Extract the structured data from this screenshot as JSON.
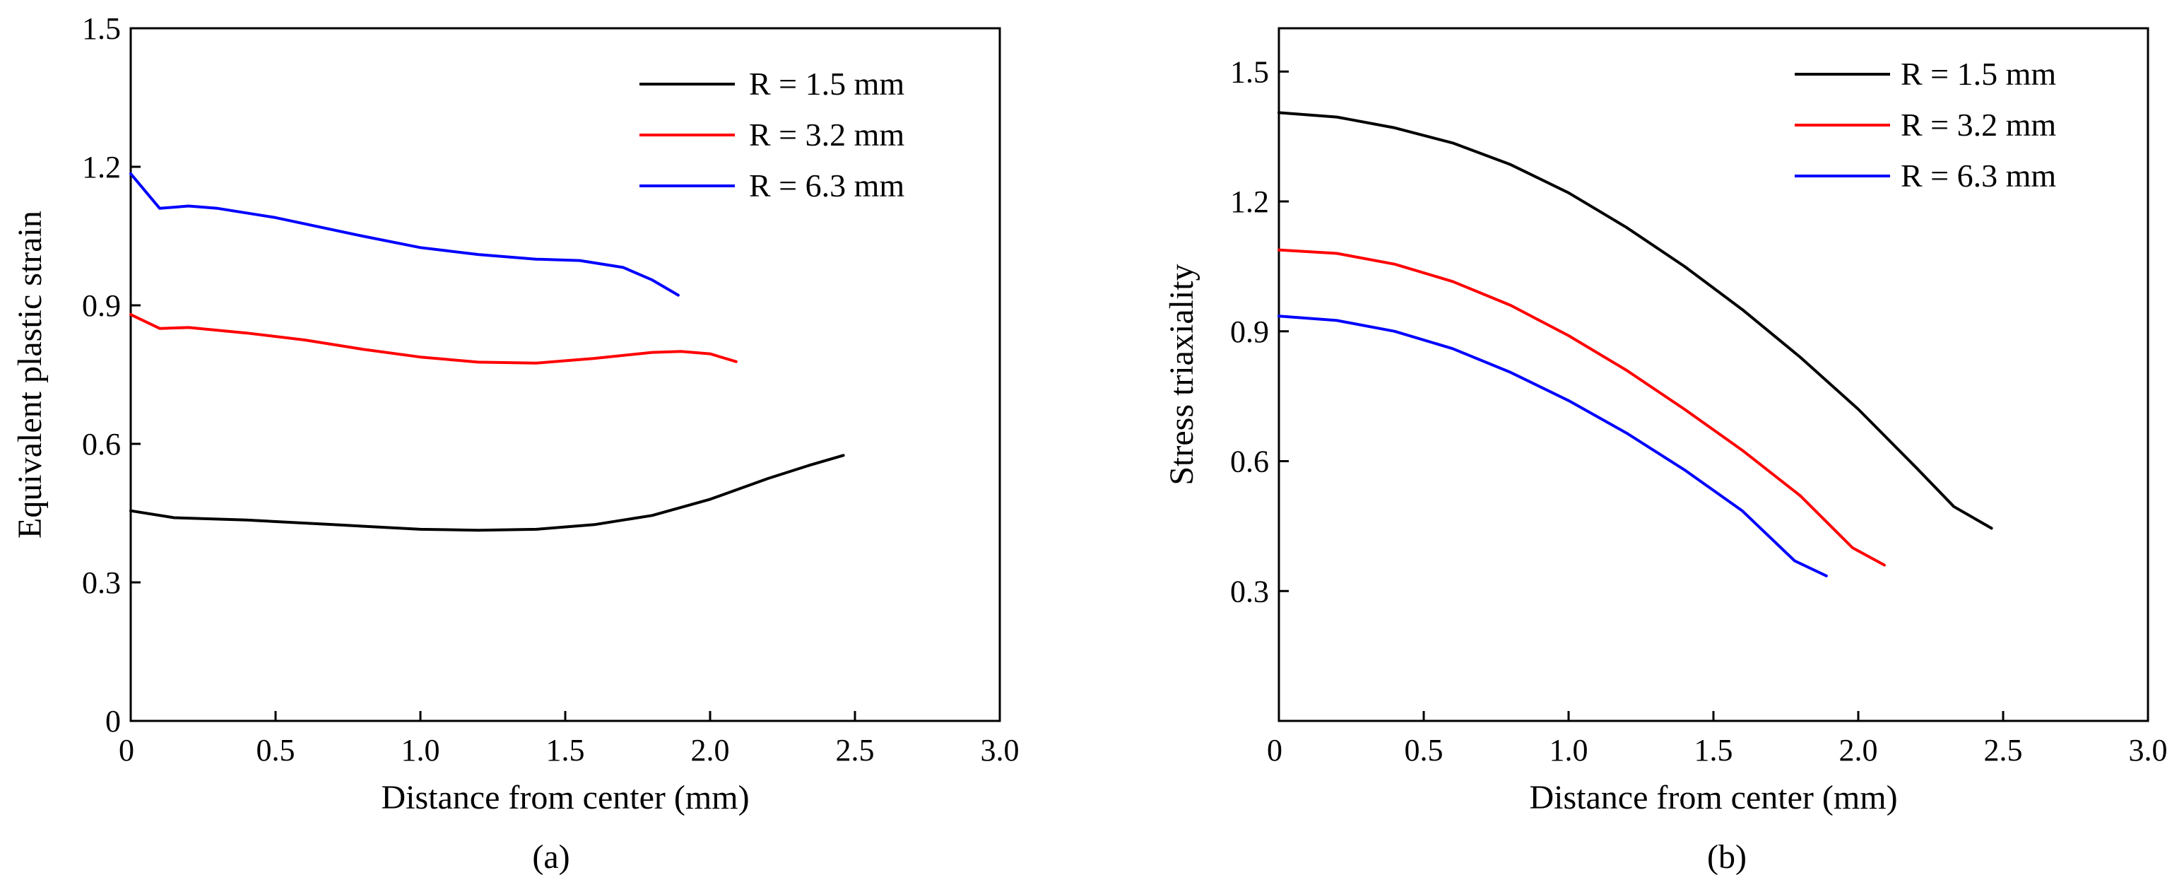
{
  "figure": {
    "panel_labels": [
      "(a)",
      "(b)"
    ]
  },
  "colors": {
    "R_1_5": "#000000",
    "R_3_2": "#ff0000",
    "R_6_3": "#0000ff",
    "axis": "#000000"
  },
  "chart_data": [
    {
      "type": "line",
      "panel": "(a)",
      "title": "",
      "xlabel": "Distance from center (mm)",
      "ylabel": "Equivalent plastic strain",
      "xlim": [
        0,
        3.0
      ],
      "ylim": [
        0,
        1.5
      ],
      "xticks": [
        0,
        0.5,
        1.0,
        1.5,
        2.0,
        2.5,
        3.0
      ],
      "xtick_labels": [
        "0",
        "0.5",
        "1.0",
        "1.5",
        "2.0",
        "2.5",
        "3.0"
      ],
      "yticks": [
        0,
        0.3,
        0.6,
        0.9,
        1.2,
        1.5
      ],
      "ytick_labels": [
        "0",
        "0.3",
        "0.6",
        "0.9",
        "1.2",
        "1.5"
      ],
      "legend_position": "top-right",
      "series": [
        {
          "name": "R = 1.5 mm",
          "color": "#000000",
          "x": [
            0,
            0.15,
            0.4,
            0.7,
            1.0,
            1.2,
            1.4,
            1.6,
            1.8,
            2.0,
            2.2,
            2.35,
            2.46
          ],
          "y": [
            0.455,
            0.44,
            0.435,
            0.425,
            0.415,
            0.413,
            0.415,
            0.425,
            0.445,
            0.48,
            0.525,
            0.555,
            0.575
          ]
        },
        {
          "name": "R = 3.2 mm",
          "color": "#ff0000",
          "x": [
            0,
            0.1,
            0.2,
            0.4,
            0.6,
            0.8,
            1.0,
            1.2,
            1.4,
            1.6,
            1.8,
            1.9,
            2.0,
            2.09
          ],
          "y": [
            0.88,
            0.85,
            0.852,
            0.84,
            0.825,
            0.805,
            0.788,
            0.777,
            0.775,
            0.785,
            0.798,
            0.8,
            0.795,
            0.778
          ]
        },
        {
          "name": "R = 6.3 mm",
          "color": "#0000ff",
          "x": [
            0,
            0.1,
            0.2,
            0.3,
            0.5,
            0.8,
            1.0,
            1.2,
            1.4,
            1.55,
            1.7,
            1.8,
            1.89
          ],
          "y": [
            1.185,
            1.11,
            1.115,
            1.11,
            1.09,
            1.05,
            1.025,
            1.01,
            1.0,
            0.997,
            0.982,
            0.955,
            0.922
          ]
        }
      ]
    },
    {
      "type": "line",
      "panel": "(b)",
      "title": "",
      "xlabel": "Distance from center (mm)",
      "ylabel": "Stress triaxiality",
      "xlim": [
        0,
        3.0
      ],
      "ylim": [
        0,
        1.6
      ],
      "xticks": [
        0,
        0.5,
        1.0,
        1.5,
        2.0,
        2.5,
        3.0
      ],
      "xtick_labels": [
        "0",
        "0.5",
        "1.0",
        "1.5",
        "2.0",
        "2.5",
        "3.0"
      ],
      "yticks": [
        0.3,
        0.6,
        0.9,
        1.2,
        1.5
      ],
      "ytick_labels": [
        "0.3",
        "0.6",
        "0.9",
        "1.2",
        "1.5"
      ],
      "legend_position": "top-right",
      "series": [
        {
          "name": "R = 1.5 mm",
          "color": "#000000",
          "x": [
            0,
            0.2,
            0.4,
            0.6,
            0.8,
            1.0,
            1.2,
            1.4,
            1.6,
            1.8,
            2.0,
            2.2,
            2.33,
            2.46
          ],
          "y": [
            1.405,
            1.395,
            1.37,
            1.335,
            1.285,
            1.22,
            1.14,
            1.05,
            0.95,
            0.84,
            0.72,
            0.585,
            0.495,
            0.445
          ]
        },
        {
          "name": "R = 3.2 mm",
          "color": "#ff0000",
          "x": [
            0,
            0.2,
            0.4,
            0.6,
            0.8,
            1.0,
            1.2,
            1.4,
            1.6,
            1.8,
            1.98,
            2.09
          ],
          "y": [
            1.088,
            1.08,
            1.055,
            1.015,
            0.96,
            0.89,
            0.81,
            0.72,
            0.625,
            0.52,
            0.4,
            0.36
          ]
        },
        {
          "name": "R = 6.3 mm",
          "color": "#0000ff",
          "x": [
            0,
            0.2,
            0.4,
            0.6,
            0.8,
            1.0,
            1.2,
            1.4,
            1.6,
            1.78,
            1.89
          ],
          "y": [
            0.935,
            0.925,
            0.9,
            0.86,
            0.805,
            0.74,
            0.665,
            0.58,
            0.485,
            0.37,
            0.335
          ]
        }
      ]
    }
  ]
}
